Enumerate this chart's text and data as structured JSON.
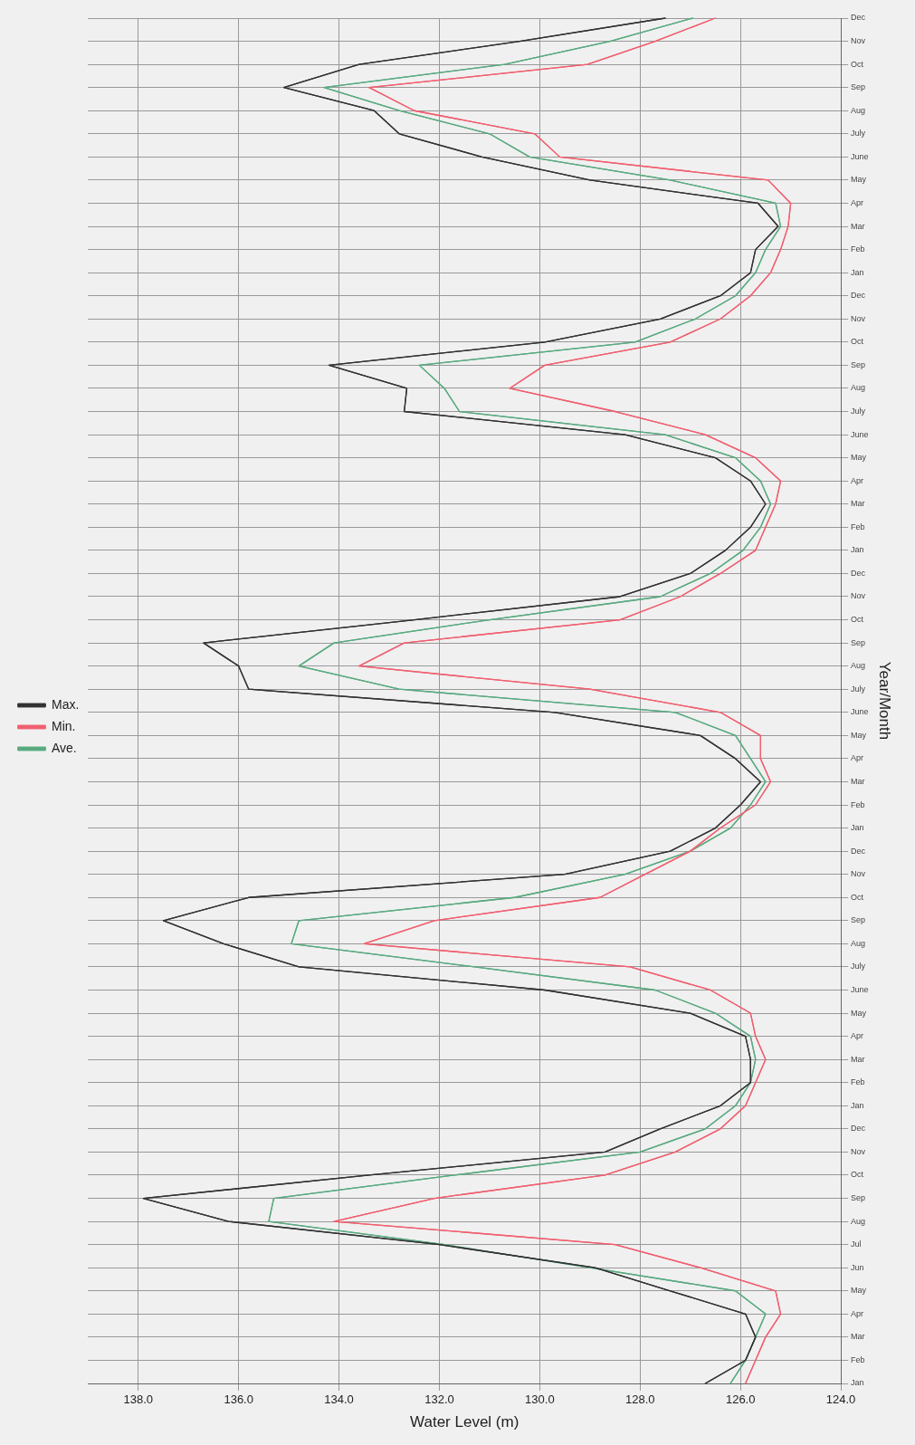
{
  "chart_data": {
    "type": "line",
    "orientation": "horizontal",
    "xlabel": "Water Level (m)",
    "ylabel": "Year/Month",
    "categories": [
      "Dec",
      "Nov",
      "Oct",
      "Sep",
      "Aug",
      "July",
      "June",
      "May",
      "Apr",
      "Mar",
      "Feb",
      "Jan",
      "Dec",
      "Nov",
      "Oct",
      "Sep",
      "Aug",
      "July",
      "June",
      "May",
      "Apr",
      "Mar",
      "Feb",
      "Jan",
      "Dec",
      "Nov",
      "Oct",
      "Sep",
      "Aug",
      "July",
      "June",
      "May",
      "Apr",
      "Mar",
      "Feb",
      "Jan",
      "Dec",
      "Nov",
      "Oct",
      "Sep",
      "Aug",
      "July",
      "June",
      "May",
      "Apr",
      "Mar",
      "Feb",
      "Jan",
      "Dec",
      "Nov",
      "Oct",
      "Sep",
      "Aug",
      "Jul",
      "Jun",
      "May",
      "Apr",
      "Mar",
      "Feb",
      "Jan"
    ],
    "series": [
      {
        "name": "Max.",
        "color": "#333333",
        "values": [
          127.5,
          130.4,
          133.6,
          135.1,
          133.3,
          132.8,
          131.15,
          129.0,
          125.65,
          125.25,
          125.7,
          125.8,
          126.4,
          127.6,
          129.9,
          134.2,
          132.65,
          132.7,
          128.3,
          126.5,
          125.8,
          125.5,
          125.8,
          126.3,
          127.0,
          128.4,
          132.5,
          136.7,
          136.0,
          135.8,
          129.7,
          126.8,
          126.1,
          125.6,
          126.0,
          126.5,
          127.4,
          129.5,
          135.8,
          137.5,
          136.3,
          134.8,
          129.9,
          127.0,
          125.9,
          125.8,
          125.8,
          126.4,
          127.6,
          128.7,
          133.4,
          137.9,
          136.2,
          132.0,
          128.9,
          127.4,
          125.9,
          125.7,
          125.9,
          126.7
        ]
      },
      {
        "name": "Min.",
        "color": "#f06070",
        "values": [
          126.5,
          127.7,
          129.05,
          133.4,
          132.5,
          130.1,
          129.6,
          125.45,
          125.0,
          125.05,
          125.2,
          125.4,
          125.8,
          126.4,
          127.4,
          129.9,
          130.6,
          128.5,
          126.7,
          125.7,
          125.2,
          125.3,
          125.5,
          125.7,
          126.4,
          127.2,
          128.4,
          132.7,
          133.6,
          129.0,
          126.4,
          125.6,
          125.6,
          125.4,
          125.7,
          126.4,
          127.0,
          127.9,
          128.8,
          132.1,
          133.5,
          128.2,
          126.6,
          125.8,
          125.7,
          125.5,
          125.7,
          125.9,
          126.4,
          127.3,
          128.7,
          132.1,
          134.1,
          128.5,
          126.8,
          125.3,
          125.2,
          125.5,
          125.7,
          125.9
        ]
      },
      {
        "name": "Ave.",
        "color": "#5aaa80",
        "values": [
          126.95,
          128.6,
          130.7,
          134.3,
          132.8,
          131.0,
          130.2,
          127.4,
          125.3,
          125.2,
          125.5,
          125.7,
          126.1,
          126.9,
          128.1,
          132.4,
          131.9,
          131.6,
          127.5,
          126.1,
          125.6,
          125.4,
          125.6,
          125.95,
          126.6,
          127.6,
          131.0,
          134.1,
          134.8,
          132.8,
          127.3,
          126.1,
          125.8,
          125.5,
          125.8,
          126.2,
          127.0,
          128.3,
          130.5,
          134.8,
          134.95,
          131.3,
          127.7,
          126.5,
          125.8,
          125.7,
          125.8,
          126.1,
          126.7,
          128.0,
          131.7,
          135.3,
          135.4,
          131.9,
          129.0,
          126.1,
          125.5,
          125.7,
          125.9,
          126.2
        ]
      }
    ],
    "xlim": [
      139,
      124
    ],
    "xticks": [
      {
        "value": 138,
        "label": "138.0"
      },
      {
        "value": 136,
        "label": "136.0"
      },
      {
        "value": 134,
        "label": "134.0"
      },
      {
        "value": 132,
        "label": "132.0"
      },
      {
        "value": 130,
        "label": "130.0"
      },
      {
        "value": 128,
        "label": "128.0"
      },
      {
        "value": 126,
        "label": "126.0"
      },
      {
        "value": 124,
        "label": "124.0"
      }
    ],
    "grid": true,
    "legend": "left",
    "marker": "none",
    "line_style": "solid"
  }
}
